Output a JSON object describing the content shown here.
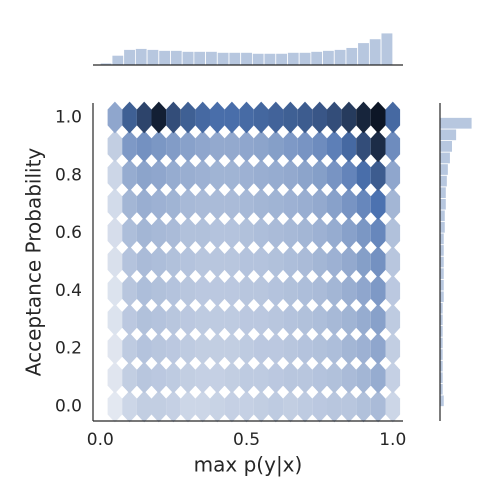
{
  "chart_data": {
    "type": "hexbin",
    "x_label": "max p(y|x)",
    "y_label": "Acceptance Probability",
    "xlim": [
      -0.025,
      1.035
    ],
    "ylim": [
      -0.05,
      1.05
    ],
    "xticks": [
      {
        "value": 0,
        "label": "0.0"
      },
      {
        "value": 0.5,
        "label": "0.5"
      },
      {
        "value": 1,
        "label": "1.0"
      }
    ],
    "yticks": [
      {
        "value": 0,
        "label": "0.0"
      },
      {
        "value": 0.2,
        "label": "0.2"
      },
      {
        "value": 0.4,
        "label": "0.4"
      },
      {
        "value": 0.6,
        "label": "0.6"
      },
      {
        "value": 0.8,
        "label": "0.8"
      },
      {
        "value": 1,
        "label": "1.0"
      }
    ],
    "cmap": [
      "#f4f5f8",
      "#4c72b0",
      "#0d1626"
    ],
    "x_centers": [
      0.05,
      0.1,
      0.15,
      0.2,
      0.25,
      0.3,
      0.35,
      0.4,
      0.45,
      0.5,
      0.55,
      0.6,
      0.65,
      0.7,
      0.75,
      0.8,
      0.85,
      0.9,
      0.95,
      1.0
    ],
    "y_centers": [
      0,
      0.1,
      0.2,
      0.3,
      0.4,
      0.5,
      0.6,
      0.7,
      0.8,
      0.9,
      1.0
    ],
    "counts": [
      [
        5,
        12,
        15,
        15,
        14,
        12,
        12,
        13,
        14,
        14,
        15,
        16,
        15,
        16,
        17,
        18,
        18,
        20,
        22,
        12
      ],
      [
        6,
        15,
        18,
        17,
        16,
        15,
        14,
        14,
        15,
        16,
        16,
        17,
        18,
        18,
        19,
        20,
        22,
        24,
        28,
        14
      ],
      [
        6,
        16,
        19,
        18,
        17,
        16,
        15,
        15,
        15,
        16,
        17,
        17,
        18,
        19,
        20,
        21,
        24,
        26,
        30,
        15
      ],
      [
        7,
        17,
        20,
        19,
        18,
        17,
        16,
        16,
        16,
        17,
        17,
        18,
        19,
        20,
        21,
        23,
        25,
        28,
        32,
        16
      ],
      [
        7,
        18,
        21,
        20,
        19,
        18,
        17,
        17,
        17,
        18,
        18,
        19,
        20,
        21,
        22,
        24,
        27,
        30,
        35,
        17
      ],
      [
        8,
        19,
        22,
        21,
        20,
        19,
        18,
        18,
        18,
        19,
        19,
        20,
        21,
        22,
        24,
        26,
        29,
        33,
        38,
        18
      ],
      [
        9,
        21,
        24,
        23,
        22,
        20,
        20,
        19,
        19,
        20,
        21,
        22,
        23,
        24,
        26,
        28,
        32,
        36,
        42,
        20
      ],
      [
        10,
        24,
        27,
        26,
        25,
        23,
        22,
        22,
        22,
        23,
        24,
        25,
        26,
        27,
        29,
        32,
        37,
        42,
        50,
        24
      ],
      [
        12,
        28,
        31,
        30,
        28,
        27,
        26,
        25,
        25,
        26,
        27,
        28,
        29,
        31,
        33,
        37,
        43,
        52,
        62,
        30
      ],
      [
        15,
        35,
        38,
        36,
        34,
        32,
        30,
        29,
        29,
        30,
        31,
        33,
        35,
        37,
        40,
        45,
        55,
        70,
        88,
        40
      ],
      [
        30,
        60,
        75,
        95,
        70,
        60,
        55,
        52,
        52,
        54,
        56,
        58,
        60,
        62,
        65,
        70,
        80,
        92,
        100,
        55
      ]
    ],
    "hist_color": "#4c72b0",
    "x_hist": {
      "bins": [
        0.0,
        0.04,
        0.08,
        0.12,
        0.16,
        0.2,
        0.24,
        0.28,
        0.32,
        0.36,
        0.4,
        0.44,
        0.48,
        0.52,
        0.56,
        0.6,
        0.64,
        0.68,
        0.72,
        0.76,
        0.8,
        0.84,
        0.88,
        0.92,
        0.96,
        1.0
      ],
      "counts": [
        2,
        10,
        16,
        17,
        16,
        15,
        15,
        14,
        14,
        14,
        13,
        13,
        13,
        12,
        12,
        12,
        13,
        13,
        14,
        15,
        16,
        18,
        23,
        27,
        33
      ]
    },
    "y_hist": {
      "bins": [
        0.0,
        0.04,
        0.08,
        0.12,
        0.16,
        0.2,
        0.24,
        0.28,
        0.32,
        0.36,
        0.4,
        0.44,
        0.48,
        0.52,
        0.56,
        0.6,
        0.64,
        0.68,
        0.72,
        0.76,
        0.8,
        0.84,
        0.88,
        0.92,
        0.96,
        1.0
      ],
      "counts": [
        4,
        3,
        3,
        3,
        3,
        3,
        3,
        3,
        3,
        4,
        4,
        4,
        4,
        4,
        4,
        5,
        5,
        6,
        6,
        7,
        8,
        10,
        12,
        16,
        31
      ]
    }
  }
}
